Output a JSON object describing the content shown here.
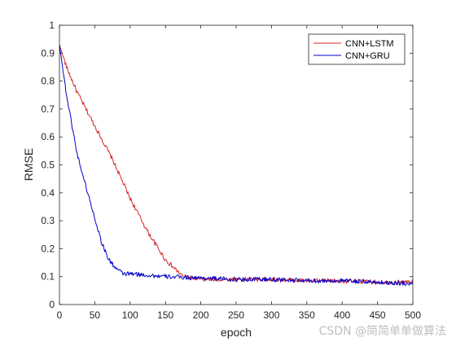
{
  "chart_data": {
    "type": "line",
    "title": "",
    "xlabel": "epoch",
    "ylabel": "RMSE",
    "xlim": [
      0,
      500
    ],
    "ylim": [
      0,
      1
    ],
    "xticks": [
      "0",
      "50",
      "100",
      "150",
      "200",
      "250",
      "300",
      "350",
      "400",
      "450",
      "500"
    ],
    "yticks": [
      "0",
      "0.1",
      "0.2",
      "0.3",
      "0.4",
      "0.5",
      "0.6",
      "0.7",
      "0.8",
      "0.9",
      "1"
    ],
    "grid": false,
    "legend_position": "top-right",
    "series": [
      {
        "name": "CNN+LSTM",
        "color": "#d62728",
        "x": [
          0,
          10,
          25,
          50,
          75,
          100,
          125,
          150,
          175,
          200,
          250,
          300,
          350,
          400,
          450,
          500
        ],
        "y": [
          0.93,
          0.85,
          0.76,
          0.64,
          0.52,
          0.38,
          0.26,
          0.16,
          0.1,
          0.09,
          0.09,
          0.09,
          0.085,
          0.085,
          0.08,
          0.08
        ]
      },
      {
        "name": "CNN+GRU",
        "color": "#0000cc",
        "x": [
          0,
          10,
          25,
          40,
          50,
          60,
          70,
          80,
          90,
          100,
          150,
          200,
          250,
          300,
          350,
          400,
          450,
          500
        ],
        "y": [
          0.93,
          0.75,
          0.54,
          0.4,
          0.31,
          0.22,
          0.16,
          0.13,
          0.11,
          0.11,
          0.1,
          0.095,
          0.09,
          0.09,
          0.085,
          0.085,
          0.08,
          0.075
        ]
      }
    ]
  },
  "watermark": "CSDN @简简单单做算法"
}
